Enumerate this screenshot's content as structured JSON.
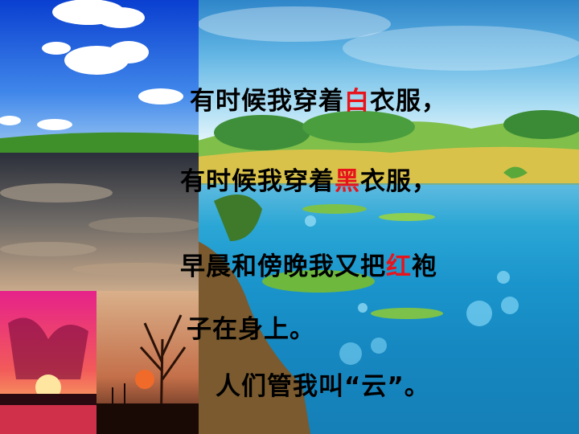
{
  "slide": {
    "lines": [
      {
        "before": "有时候我穿着",
        "highlight": "白",
        "after": "衣服，"
      },
      {
        "before": "有时候我穿着",
        "highlight": "黑",
        "after": "衣服，"
      },
      {
        "before": "早晨和傍晚我又把",
        "highlight": "红",
        "after": "袍"
      },
      {
        "text": "子在身上。"
      },
      {
        "text": "人们管我叫“云”。"
      }
    ],
    "colors": {
      "text": "#000000",
      "highlight": "#e8141c"
    }
  },
  "images": [
    {
      "name": "blue-sky-white-clouds-photo"
    },
    {
      "name": "dark-clouds-dusk-photo"
    },
    {
      "name": "red-sunset-clouds-photo"
    },
    {
      "name": "sunset-bare-tree-photo"
    },
    {
      "name": "cartoon-lake-background"
    }
  ]
}
